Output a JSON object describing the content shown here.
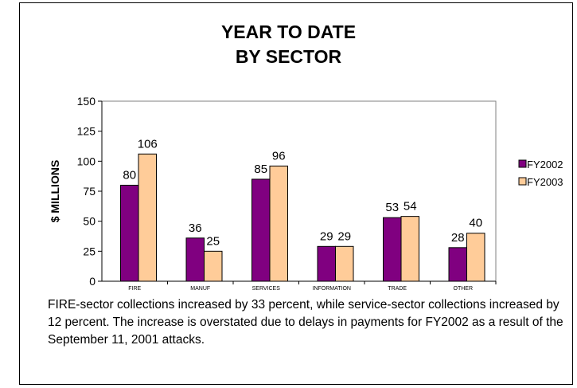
{
  "chart_data": {
    "type": "bar",
    "title": [
      "YEAR TO DATE",
      "BY SECTOR"
    ],
    "xlabel": "",
    "ylabel": "$ MILLIONS",
    "ylim": [
      0,
      150
    ],
    "yticks": [
      0,
      25,
      50,
      75,
      100,
      125,
      150
    ],
    "categories": [
      "FIRE",
      "MANUF",
      "SERVICES",
      "INFORMATION",
      "TRADE",
      "OTHER"
    ],
    "series": [
      {
        "name": "FY2002",
        "values": [
          80,
          36,
          85,
          29,
          53,
          28
        ],
        "color": "#800080"
      },
      {
        "name": "FY2003",
        "values": [
          106,
          25,
          96,
          29,
          54,
          40
        ],
        "color": "#FFCC99"
      }
    ],
    "grid": false,
    "legend": "right",
    "data_labels": true
  },
  "caption": "FIRE-sector collections increased by 33 percent, while service-sector collections increased by 12 percent.  The increase is overstated due to delays in payments for FY2002 as a result of the September 11, 2001 attacks."
}
